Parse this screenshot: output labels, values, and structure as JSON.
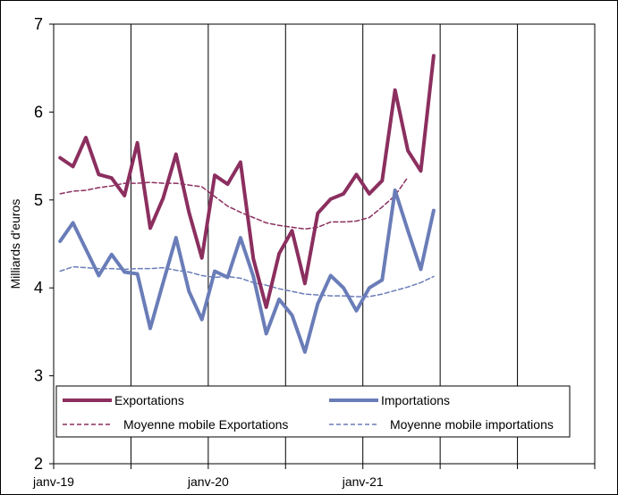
{
  "chart_data": {
    "type": "line",
    "title": "",
    "xlabel": "",
    "ylabel": "Milliards d'euros",
    "ylim": [
      2,
      7
    ],
    "yticks": [
      "2",
      "3",
      "4",
      "5",
      "6",
      "7"
    ],
    "x_tick_labels": [
      "janv-19",
      "janv-20",
      "janv-21"
    ],
    "x_range_months": [
      "janv-19",
      "juil-22"
    ],
    "grid": "vertical",
    "legend": "bottom",
    "series": [
      {
        "name": "Exportations",
        "color": "#8B2F5F",
        "style": "solid-thick",
        "values": [
          5.48,
          5.38,
          5.71,
          5.29,
          5.25,
          5.05,
          5.65,
          4.68,
          5.02,
          5.52,
          4.86,
          4.34,
          5.28,
          5.18,
          5.43,
          4.33,
          3.78,
          4.39,
          4.65,
          4.05,
          4.85,
          5.01,
          5.07,
          5.29,
          5.07,
          5.22,
          6.25,
          5.56,
          5.33,
          6.64
        ]
      },
      {
        "name": "Importations",
        "color": "#6A7DB8",
        "style": "solid-thick",
        "values": [
          4.53,
          4.74,
          4.44,
          4.14,
          4.38,
          4.18,
          4.16,
          3.54,
          4.06,
          4.57,
          3.96,
          3.64,
          4.19,
          4.12,
          4.57,
          4.13,
          3.48,
          3.87,
          3.69,
          3.27,
          3.82,
          4.14,
          4.0,
          3.74,
          4.0,
          4.09,
          5.11,
          4.65,
          4.21,
          4.88
        ]
      },
      {
        "name": "Moyenne mobile Exportations",
        "color": "#8B2F5F",
        "style": "dashed",
        "values": [
          5.07,
          5.1,
          5.11,
          5.14,
          5.16,
          5.19,
          5.19,
          5.2,
          5.19,
          5.19,
          5.17,
          5.15,
          5.04,
          4.93,
          4.86,
          4.8,
          4.74,
          4.71,
          4.69,
          4.67,
          4.69,
          4.75,
          4.75,
          4.76,
          4.8,
          4.92,
          5.05,
          5.26
        ]
      },
      {
        "name": "Moyenne mobile importations",
        "color": "#6A7DB8",
        "style": "dashed",
        "values": [
          4.19,
          4.24,
          4.23,
          4.22,
          4.22,
          4.21,
          4.22,
          4.22,
          4.23,
          4.2,
          4.18,
          4.14,
          4.12,
          4.13,
          4.11,
          4.06,
          4.03,
          3.99,
          3.96,
          3.93,
          3.92,
          3.91,
          3.91,
          3.9,
          3.9,
          3.93,
          3.97,
          4.01,
          4.06,
          4.13
        ]
      }
    ]
  }
}
